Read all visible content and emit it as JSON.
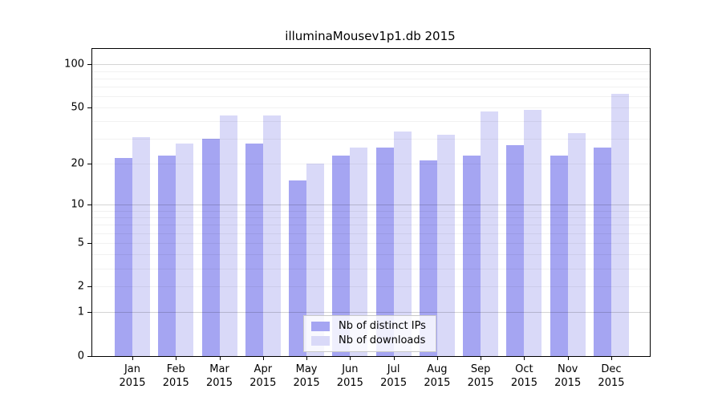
{
  "chart_data": {
    "type": "bar",
    "title": "illuminaMousev1p1.db 2015",
    "categories": [
      "Jan",
      "Feb",
      "Mar",
      "Apr",
      "May",
      "Jun",
      "Jul",
      "Aug",
      "Sep",
      "Oct",
      "Nov",
      "Dec"
    ],
    "category_year": "2015",
    "series": [
      {
        "name": "Nb of distinct IPs",
        "color": "#a5a5f2",
        "values": [
          22,
          23,
          30,
          28,
          15,
          23,
          26,
          21,
          23,
          27,
          23,
          26
        ]
      },
      {
        "name": "Nb of downloads",
        "color": "#d9d9f8",
        "values": [
          31,
          28,
          44,
          44,
          20,
          26,
          34,
          32,
          47,
          48,
          33,
          62
        ]
      }
    ],
    "xlabel": "",
    "ylabel": "",
    "y_scale": "log10(1+x)",
    "y_tick_labels": [
      0,
      1,
      2,
      5,
      10,
      20,
      50,
      100
    ],
    "y_gridlines": [
      1,
      2,
      3,
      4,
      5,
      6,
      7,
      8,
      9,
      10,
      20,
      30,
      40,
      50,
      60,
      70,
      80,
      90,
      100
    ],
    "y_major_gridlines": [
      1,
      10,
      100
    ],
    "ylim": [
      0,
      128
    ],
    "grid": true,
    "legend_position": "bottom-center",
    "colors": {
      "axis": "#000000",
      "background": "#ffffff"
    }
  }
}
